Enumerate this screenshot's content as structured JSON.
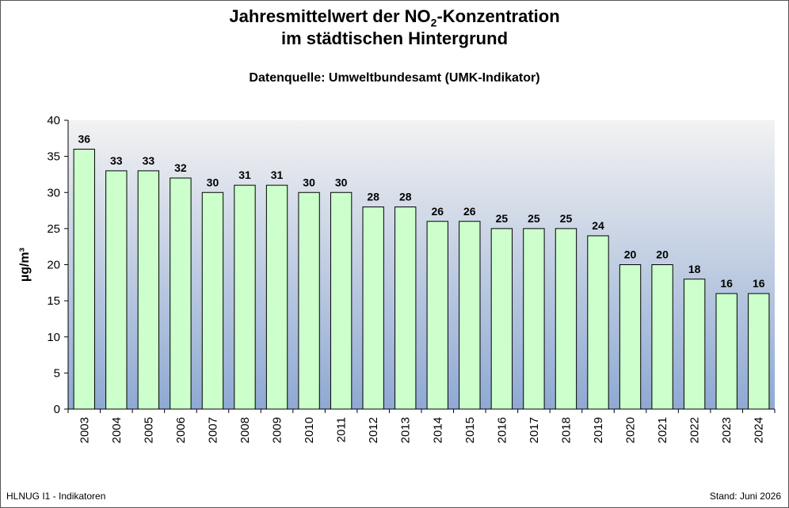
{
  "title": {
    "line1_pre": "Jahresmittelwert der NO",
    "line1_sub": "2",
    "line1_post": "-Konzentration",
    "line2": "im städtischen Hintergrund"
  },
  "subtitle": "Datenquelle: Umweltbundesamt (UMK-Indikator)",
  "footer": {
    "left": "HLNUG I1 - Indikatoren",
    "right": "Stand: Juni 2026"
  },
  "colors": {
    "bar_fill": "#ccffcc",
    "bar_stroke": "#000000",
    "plot_bg_top": "#f2f2f2",
    "plot_bg_bottom": "#8fa9d3"
  },
  "chart_data": {
    "type": "bar",
    "ylabel": "µg/m³",
    "xlabel": "",
    "ylim": [
      0,
      40
    ],
    "yticks": [
      0,
      5,
      10,
      15,
      20,
      25,
      30,
      35,
      40
    ],
    "categories": [
      "2003",
      "2004",
      "2005",
      "2006",
      "2007",
      "2008",
      "2009",
      "2010",
      "2011",
      "2012",
      "2013",
      "2014",
      "2015",
      "2016",
      "2017",
      "2018",
      "2019",
      "2020",
      "2021",
      "2022",
      "2023",
      "2024"
    ],
    "values": [
      36,
      33,
      33,
      32,
      30,
      31,
      31,
      30,
      30,
      28,
      28,
      26,
      26,
      25,
      25,
      25,
      24,
      20,
      20,
      18,
      16,
      16
    ],
    "data_labels": true,
    "grid": false
  }
}
